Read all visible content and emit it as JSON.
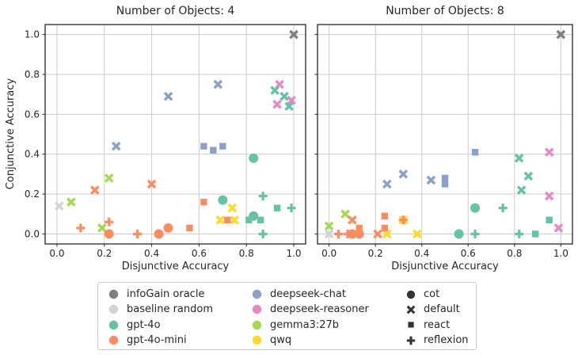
{
  "figure": {
    "title_left": "Number of Objects: 4",
    "title_right": "Number of Objects: 8",
    "xlabel": "Disjunctive Accuracy",
    "ylabel": "Conjunctive Accuracy",
    "xticks": [
      "0.0",
      "0.2",
      "0.4",
      "0.6",
      "0.8",
      "1.0"
    ],
    "yticks": [
      "0.0",
      "0.2",
      "0.4",
      "0.6",
      "0.8",
      "1.0"
    ]
  },
  "colors": {
    "infoGain oracle": "#7f7f7f",
    "baseline random": "#d3d3d3",
    "gpt-4o": "#66c2a5",
    "gpt-4o-mini": "#fc8d62",
    "deepseek-chat": "#8da0cb",
    "deepseek-reasoner": "#e78ac3",
    "gemma3:27b": "#a6d854",
    "qwq": "#ffd92f"
  },
  "legend": {
    "models": [
      {
        "label": "infoGain oracle",
        "color": "#7f7f7f"
      },
      {
        "label": "baseline random",
        "color": "#d3d3d3"
      },
      {
        "label": "gpt-4o",
        "color": "#66c2a5"
      },
      {
        "label": "gpt-4o-mini",
        "color": "#fc8d62"
      },
      {
        "label": "deepseek-chat",
        "color": "#8da0cb"
      },
      {
        "label": "deepseek-reasoner",
        "color": "#e78ac3"
      },
      {
        "label": "gemma3:27b",
        "color": "#a6d854"
      },
      {
        "label": "qwq",
        "color": "#ffd92f"
      }
    ],
    "strategies": [
      {
        "label": "cot",
        "marker": "circle"
      },
      {
        "label": "default",
        "marker": "x"
      },
      {
        "label": "react",
        "marker": "square"
      },
      {
        "label": "reflexion",
        "marker": "plus"
      }
    ]
  },
  "chart_data": [
    {
      "type": "scatter",
      "title": "Number of Objects: 4",
      "xlabel": "Disjunctive Accuracy",
      "ylabel": "Conjunctive Accuracy",
      "xlim": [
        -0.05,
        1.05
      ],
      "ylim": [
        -0.05,
        1.05
      ],
      "grid": true,
      "points": [
        {
          "model": "gemma3:27b",
          "strategy": "default",
          "x": 0.06,
          "y": 0.16
        },
        {
          "model": "gemma3:27b",
          "strategy": "default",
          "x": 0.19,
          "y": 0.03
        },
        {
          "model": "gemma3:27b",
          "strategy": "default",
          "x": 0.22,
          "y": 0.28
        },
        {
          "model": "qwq",
          "strategy": "default",
          "x": 0.69,
          "y": 0.07
        },
        {
          "model": "qwq",
          "strategy": "default",
          "x": 0.74,
          "y": 0.13
        },
        {
          "model": "qwq",
          "strategy": "default",
          "x": 0.75,
          "y": 0.07
        },
        {
          "model": "gpt-4o-mini",
          "strategy": "default",
          "x": 0.16,
          "y": 0.22
        },
        {
          "model": "gpt-4o-mini",
          "strategy": "default",
          "x": 0.4,
          "y": 0.25
        },
        {
          "model": "gpt-4o-mini",
          "strategy": "cot",
          "x": 0.22,
          "y": 0.0
        },
        {
          "model": "gpt-4o-mini",
          "strategy": "cot",
          "x": 0.43,
          "y": 0.0
        },
        {
          "model": "gpt-4o-mini",
          "strategy": "cot",
          "x": 0.47,
          "y": 0.03
        },
        {
          "model": "gpt-4o-mini",
          "strategy": "react",
          "x": 0.56,
          "y": 0.03
        },
        {
          "model": "gpt-4o-mini",
          "strategy": "react",
          "x": 0.62,
          "y": 0.16
        },
        {
          "model": "gpt-4o-mini",
          "strategy": "react",
          "x": 0.72,
          "y": 0.07
        },
        {
          "model": "gpt-4o-mini",
          "strategy": "reflexion",
          "x": 0.1,
          "y": 0.03
        },
        {
          "model": "gpt-4o-mini",
          "strategy": "reflexion",
          "x": 0.22,
          "y": 0.06
        },
        {
          "model": "gpt-4o-mini",
          "strategy": "reflexion",
          "x": 0.34,
          "y": 0.0
        },
        {
          "model": "baseline random",
          "strategy": "default",
          "x": 0.01,
          "y": 0.14
        },
        {
          "model": "deepseek-chat",
          "strategy": "default",
          "x": 0.25,
          "y": 0.44
        },
        {
          "model": "deepseek-chat",
          "strategy": "default",
          "x": 0.47,
          "y": 0.69
        },
        {
          "model": "deepseek-chat",
          "strategy": "default",
          "x": 0.68,
          "y": 0.75
        },
        {
          "model": "deepseek-chat",
          "strategy": "react",
          "x": 0.62,
          "y": 0.44
        },
        {
          "model": "deepseek-chat",
          "strategy": "react",
          "x": 0.66,
          "y": 0.42
        },
        {
          "model": "deepseek-chat",
          "strategy": "react",
          "x": 0.7,
          "y": 0.44
        },
        {
          "model": "deepseek-reasoner",
          "strategy": "default",
          "x": 0.93,
          "y": 0.65
        },
        {
          "model": "deepseek-reasoner",
          "strategy": "default",
          "x": 0.94,
          "y": 0.75
        },
        {
          "model": "deepseek-reasoner",
          "strategy": "default",
          "x": 0.99,
          "y": 0.67
        },
        {
          "model": "gpt-4o",
          "strategy": "default",
          "x": 0.92,
          "y": 0.72
        },
        {
          "model": "gpt-4o",
          "strategy": "default",
          "x": 0.96,
          "y": 0.69
        },
        {
          "model": "gpt-4o",
          "strategy": "default",
          "x": 0.98,
          "y": 0.64
        },
        {
          "model": "gpt-4o",
          "strategy": "cot",
          "x": 0.7,
          "y": 0.17
        },
        {
          "model": "gpt-4o",
          "strategy": "cot",
          "x": 0.83,
          "y": 0.38
        },
        {
          "model": "gpt-4o",
          "strategy": "cot",
          "x": 0.83,
          "y": 0.09
        },
        {
          "model": "gpt-4o",
          "strategy": "react",
          "x": 0.81,
          "y": 0.07
        },
        {
          "model": "gpt-4o",
          "strategy": "react",
          "x": 0.86,
          "y": 0.07
        },
        {
          "model": "gpt-4o",
          "strategy": "react",
          "x": 0.93,
          "y": 0.13
        },
        {
          "model": "gpt-4o",
          "strategy": "reflexion",
          "x": 0.87,
          "y": 0.0
        },
        {
          "model": "gpt-4o",
          "strategy": "reflexion",
          "x": 0.87,
          "y": 0.19
        },
        {
          "model": "gpt-4o",
          "strategy": "reflexion",
          "x": 0.99,
          "y": 0.13
        },
        {
          "model": "infoGain oracle",
          "strategy": "default",
          "x": 1.0,
          "y": 1.0
        }
      ]
    },
    {
      "type": "scatter",
      "title": "Number of Objects: 8",
      "xlabel": "Disjunctive Accuracy",
      "ylabel": "Conjunctive Accuracy",
      "xlim": [
        -0.05,
        1.05
      ],
      "ylim": [
        -0.05,
        1.05
      ],
      "grid": true,
      "points": [
        {
          "model": "gemma3:27b",
          "strategy": "default",
          "x": 0.0,
          "y": 0.04
        },
        {
          "model": "gemma3:27b",
          "strategy": "default",
          "x": 0.07,
          "y": 0.1
        },
        {
          "model": "qwq",
          "strategy": "default",
          "x": 0.25,
          "y": 0.0
        },
        {
          "model": "qwq",
          "strategy": "default",
          "x": 0.32,
          "y": 0.07
        },
        {
          "model": "qwq",
          "strategy": "default",
          "x": 0.38,
          "y": 0.0
        },
        {
          "model": "gpt-4o-mini",
          "strategy": "default",
          "x": 0.1,
          "y": 0.07
        },
        {
          "model": "gpt-4o-mini",
          "strategy": "default",
          "x": 0.21,
          "y": 0.0
        },
        {
          "model": "gpt-4o-mini",
          "strategy": "cot",
          "x": 0.1,
          "y": 0.0
        },
        {
          "model": "gpt-4o-mini",
          "strategy": "cot",
          "x": 0.13,
          "y": 0.0
        },
        {
          "model": "gpt-4o-mini",
          "strategy": "react",
          "x": 0.13,
          "y": 0.03
        },
        {
          "model": "gpt-4o-mini",
          "strategy": "react",
          "x": 0.24,
          "y": 0.03
        },
        {
          "model": "gpt-4o-mini",
          "strategy": "react",
          "x": 0.24,
          "y": 0.09
        },
        {
          "model": "gpt-4o-mini",
          "strategy": "reflexion",
          "x": 0.04,
          "y": 0.0
        },
        {
          "model": "gpt-4o-mini",
          "strategy": "reflexion",
          "x": 0.08,
          "y": 0.0
        },
        {
          "model": "gpt-4o-mini",
          "strategy": "reflexion",
          "x": 0.32,
          "y": 0.07
        },
        {
          "model": "baseline random",
          "strategy": "default",
          "x": 0.0,
          "y": 0.0
        },
        {
          "model": "deepseek-chat",
          "strategy": "default",
          "x": 0.25,
          "y": 0.25
        },
        {
          "model": "deepseek-chat",
          "strategy": "default",
          "x": 0.32,
          "y": 0.3
        },
        {
          "model": "deepseek-chat",
          "strategy": "default",
          "x": 0.44,
          "y": 0.27
        },
        {
          "model": "deepseek-chat",
          "strategy": "react",
          "x": 0.5,
          "y": 0.25
        },
        {
          "model": "deepseek-chat",
          "strategy": "react",
          "x": 0.5,
          "y": 0.28
        },
        {
          "model": "deepseek-chat",
          "strategy": "react",
          "x": 0.63,
          "y": 0.41
        },
        {
          "model": "deepseek-reasoner",
          "strategy": "default",
          "x": 0.95,
          "y": 0.19
        },
        {
          "model": "deepseek-reasoner",
          "strategy": "default",
          "x": 0.95,
          "y": 0.41
        },
        {
          "model": "deepseek-reasoner",
          "strategy": "default",
          "x": 0.99,
          "y": 0.03
        },
        {
          "model": "gpt-4o",
          "strategy": "default",
          "x": 0.82,
          "y": 0.38
        },
        {
          "model": "gpt-4o",
          "strategy": "default",
          "x": 0.86,
          "y": 0.29
        },
        {
          "model": "gpt-4o",
          "strategy": "default",
          "x": 0.83,
          "y": 0.22
        },
        {
          "model": "gpt-4o",
          "strategy": "cot",
          "x": 0.56,
          "y": 0.0
        },
        {
          "model": "gpt-4o",
          "strategy": "cot",
          "x": 0.63,
          "y": 0.13
        },
        {
          "model": "gpt-4o",
          "strategy": "react",
          "x": 0.89,
          "y": 0.0
        },
        {
          "model": "gpt-4o",
          "strategy": "react",
          "x": 0.95,
          "y": 0.07
        },
        {
          "model": "gpt-4o",
          "strategy": "reflexion",
          "x": 0.63,
          "y": 0.0
        },
        {
          "model": "gpt-4o",
          "strategy": "reflexion",
          "x": 0.75,
          "y": 0.13
        },
        {
          "model": "gpt-4o",
          "strategy": "reflexion",
          "x": 0.82,
          "y": 0.0
        },
        {
          "model": "infoGain oracle",
          "strategy": "default",
          "x": 1.0,
          "y": 1.0
        }
      ]
    }
  ]
}
